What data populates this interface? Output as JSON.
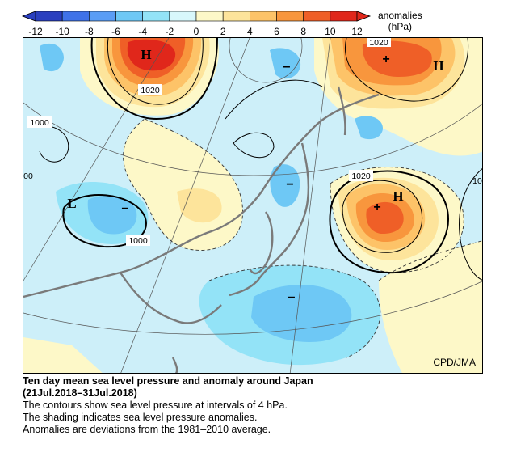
{
  "colorbar": {
    "ticks": [
      "-12",
      "-10",
      "-8",
      "-6",
      "-4",
      "-2",
      "0",
      "2",
      "4",
      "6",
      "8",
      "10",
      "12"
    ],
    "unit_line1": "anomalies",
    "unit_line2": "(hPa)",
    "colors": [
      "#2a3fbf",
      "#3f72e8",
      "#5a9df5",
      "#6ec8f5",
      "#93e3f7",
      "#d8f7fb",
      "#fdf8c8",
      "#fde49b",
      "#fdc368",
      "#f8963d",
      "#ef5f27",
      "#e0271b"
    ]
  },
  "map": {
    "credit": "CPD/JMA",
    "contour_labels": [
      "1020",
      "1020",
      "1020",
      "1000",
      "1000",
      "00",
      "10"
    ],
    "pressure_centers": [
      "H",
      "H",
      "H",
      "L"
    ],
    "anomaly_signs": [
      "+",
      "+",
      "−",
      "−",
      "−",
      "−"
    ]
  },
  "caption": {
    "title": "Ten day mean sea level pressure and anomaly around Japan",
    "period": "(21Jul.2018–31Jul.2018)",
    "line1": "The contours show sea level pressure at intervals of 4 hPa.",
    "line2": "The shading indicates sea level pressure anomalies.",
    "line3": "Anomalies are deviations from the 1981–2010 average."
  }
}
